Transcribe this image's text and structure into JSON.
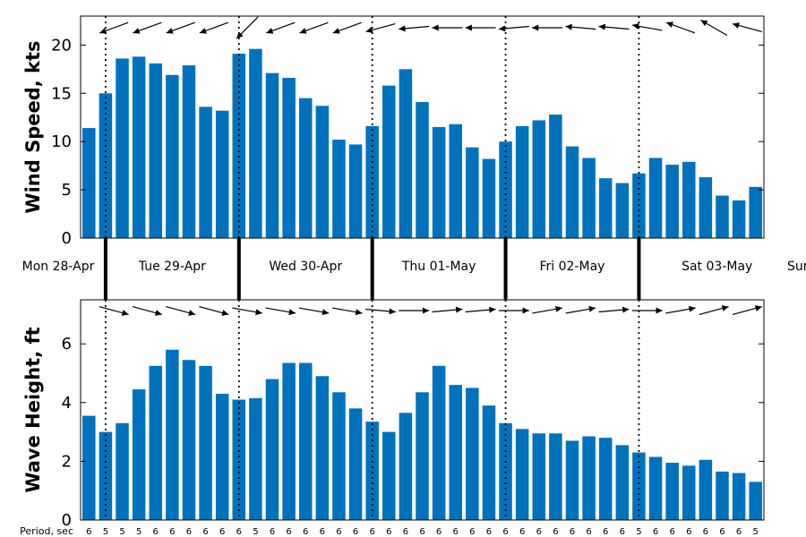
{
  "chart_data": [
    {
      "type": "bar",
      "ylabel": "Wind Speed, kts",
      "xlabel": "",
      "ylim": [
        0,
        23
      ],
      "yticks": [
        0,
        5,
        10,
        15,
        20
      ],
      "grid": false,
      "values": [
        11.4,
        15.0,
        18.6,
        18.8,
        18.1,
        16.9,
        17.9,
        13.6,
        13.2,
        19.1,
        19.6,
        17.1,
        16.6,
        14.5,
        13.7,
        10.2,
        9.7,
        11.6,
        15.8,
        17.5,
        14.1,
        11.5,
        11.8,
        9.4,
        8.2,
        10.0,
        11.6,
        12.2,
        12.8,
        9.5,
        8.3,
        6.2,
        5.7,
        6.7,
        8.3,
        7.6,
        7.9,
        6.3,
        4.4,
        3.9,
        5.3
      ],
      "direction_arrows": "wind direction arrows above bars",
      "bar_color": "#0072BD"
    },
    {
      "type": "bar",
      "ylabel": "Wave Height, ft",
      "xlabel": "",
      "ylim": [
        0,
        7.5
      ],
      "yticks": [
        0,
        2,
        4,
        6
      ],
      "grid": false,
      "values": [
        3.55,
        3.0,
        3.3,
        4.45,
        5.25,
        5.8,
        5.45,
        5.25,
        4.3,
        4.1,
        4.15,
        4.8,
        5.35,
        5.35,
        4.9,
        4.35,
        3.8,
        3.35,
        3.0,
        3.65,
        4.35,
        5.25,
        4.6,
        4.5,
        3.9,
        3.3,
        3.1,
        2.95,
        2.95,
        2.7,
        2.85,
        2.8,
        2.55,
        2.3,
        2.15,
        1.95,
        1.85,
        2.05,
        1.65,
        1.6,
        1.3
      ],
      "direction_arrows": "wave direction arrows above bars",
      "bar_color": "#0072BD"
    }
  ],
  "days": [
    "Mon 28-Apr",
    "Tue 29-Apr",
    "Wed 30-Apr",
    "Thu 01-May",
    "Fri 02-May",
    "Sat 03-May",
    "Sun"
  ],
  "period_label": "Period, sec",
  "periods": [
    "6",
    "5",
    "5",
    "5",
    "6",
    "6",
    "6",
    "6",
    "6",
    "6",
    "5",
    "6",
    "6",
    "6",
    "6",
    "6",
    "6",
    "6",
    "6",
    "6",
    "6",
    "6",
    "6",
    "6",
    "6",
    "6",
    "6",
    "6",
    "6",
    "6",
    "6",
    "6",
    "6",
    "5",
    "6",
    "6",
    "6",
    "6",
    "6",
    "6",
    "5"
  ],
  "arrows": {
    "wind_angles_deg": [
      200,
      200,
      200,
      200,
      200,
      200,
      200,
      200,
      200,
      225,
      220,
      200,
      200,
      200,
      200,
      200,
      200,
      195,
      190,
      185,
      180,
      180,
      180,
      180,
      180,
      185,
      180,
      180,
      175,
      175,
      175,
      175,
      175,
      170,
      165,
      160,
      160,
      150,
      160,
      165,
      165
    ],
    "wave_angles_deg": [
      -15,
      -15,
      -15,
      -15,
      -15,
      -15,
      -15,
      -15,
      -15,
      -10,
      -10,
      -10,
      -10,
      -10,
      -10,
      -10,
      -10,
      -5,
      0,
      0,
      5,
      5,
      5,
      5,
      0,
      0,
      0,
      10,
      10,
      10,
      5,
      5,
      0,
      0,
      5,
      10,
      15,
      15,
      15,
      15,
      15
    ]
  },
  "colors": {
    "bar": "#0072BD",
    "axis": "#000000",
    "background": "#ffffff"
  }
}
